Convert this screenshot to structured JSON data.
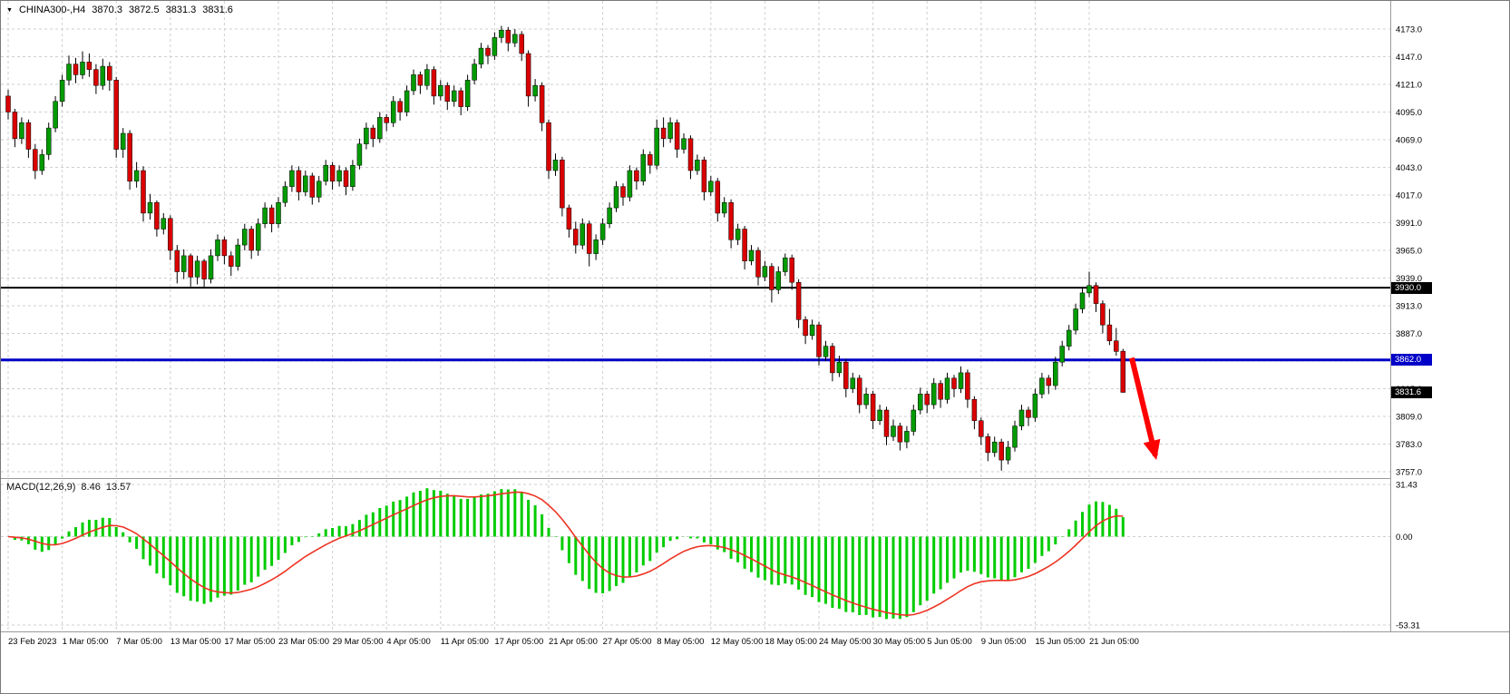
{
  "window": {
    "background": "#ffffff"
  },
  "chart_data": {
    "type": "candlestick",
    "symbol_timeframe": "CHINA300-,H4",
    "ohlc_display": {
      "open": "3870.3",
      "high": "3872.5",
      "low": "3831.3",
      "close": "3831.6"
    },
    "colors": {
      "up": "#009b00",
      "down": "#da0000",
      "candle_border": "#000000",
      "grid": "#cfcfcf",
      "resistance_line": "#000000",
      "support_line": "#0000c8",
      "arrow": "#ff0000",
      "macd_histogram": "#00cc00",
      "macd_signal": "#ee3322"
    },
    "price_axis": {
      "max": 4173.0,
      "min": 3757.0,
      "tick_step": 26.0,
      "tick_labels": [
        "4173.0",
        "4147.0",
        "4121.0",
        "4095.0",
        "4069.0",
        "4043.0",
        "4017.0",
        "3991.0",
        "3965.0",
        "3939.0",
        "3913.0",
        "3887.0",
        "3861.0",
        "3835.0",
        "3809.0",
        "3783.0",
        "3757.0"
      ]
    },
    "levels": [
      {
        "label": "3930.0",
        "value": 3930.0,
        "color": "#000000",
        "line_width": 2
      },
      {
        "label": "3862.0",
        "value": 3862.0,
        "color": "#0000c8",
        "line_width": 3
      }
    ],
    "current_price": {
      "label": "3831.6",
      "value": 3831.6,
      "badge_color": "#000000"
    },
    "time_axis": {
      "label_every_n_bars": 8,
      "labels": [
        "23 Feb 2023",
        "1 Mar 05:00",
        "7 Mar 05:00",
        "13 Mar 05:00",
        "17 Mar 05:00",
        "23 Mar 05:00",
        "29 Mar 05:00",
        "4 Apr 05:00",
        "11 Apr 05:00",
        "17 Apr 05:00",
        "21 Apr 05:00",
        "27 Apr 05:00",
        "8 May 05:00",
        "12 May 05:00",
        "18 May 05:00",
        "24 May 05:00",
        "30 May 05:00",
        "5 Jun 05:00",
        "9 Jun 05:00",
        "15 Jun 05:00",
        "21 Jun 05:00"
      ]
    },
    "candles": [
      [
        4110,
        4116,
        4088,
        4095
      ],
      [
        4095,
        4098,
        4062,
        4070
      ],
      [
        4070,
        4090,
        4065,
        4085
      ],
      [
        4085,
        4088,
        4052,
        4060
      ],
      [
        4060,
        4065,
        4032,
        4040
      ],
      [
        4040,
        4060,
        4036,
        4055
      ],
      [
        4055,
        4085,
        4050,
        4080
      ],
      [
        4080,
        4110,
        4076,
        4105
      ],
      [
        4105,
        4130,
        4100,
        4125
      ],
      [
        4125,
        4148,
        4120,
        4140
      ],
      [
        4140,
        4146,
        4122,
        4130
      ],
      [
        4130,
        4152,
        4126,
        4142
      ],
      [
        4142,
        4150,
        4128,
        4135
      ],
      [
        4135,
        4140,
        4112,
        4120
      ],
      [
        4120,
        4145,
        4116,
        4138
      ],
      [
        4138,
        4142,
        4115,
        4125
      ],
      [
        4125,
        4128,
        4052,
        4060
      ],
      [
        4060,
        4080,
        4052,
        4075
      ],
      [
        4075,
        4078,
        4022,
        4030
      ],
      [
        4030,
        4048,
        4024,
        4040
      ],
      [
        4040,
        4044,
        3992,
        4000
      ],
      [
        4000,
        4018,
        3994,
        4010
      ],
      [
        4010,
        4012,
        3978,
        3985
      ],
      [
        3985,
        4000,
        3980,
        3995
      ],
      [
        3995,
        3998,
        3956,
        3965
      ],
      [
        3965,
        3970,
        3934,
        3945
      ],
      [
        3945,
        3966,
        3938,
        3960
      ],
      [
        3960,
        3962,
        3931,
        3940
      ],
      [
        3940,
        3960,
        3933,
        3955
      ],
      [
        3955,
        3957,
        3930,
        3938
      ],
      [
        3938,
        3966,
        3934,
        3960
      ],
      [
        3960,
        3980,
        3955,
        3975
      ],
      [
        3975,
        3978,
        3952,
        3960
      ],
      [
        3960,
        3964,
        3941,
        3950
      ],
      [
        3950,
        3976,
        3946,
        3970
      ],
      [
        3970,
        3990,
        3965,
        3985
      ],
      [
        3985,
        3988,
        3957,
        3965
      ],
      [
        3965,
        3995,
        3960,
        3990
      ],
      [
        3990,
        4010,
        3986,
        4005
      ],
      [
        4005,
        4008,
        3982,
        3990
      ],
      [
        3990,
        4015,
        3986,
        4010
      ],
      [
        4010,
        4030,
        4006,
        4025
      ],
      [
        4025,
        4045,
        4020,
        4040
      ],
      [
        4040,
        4044,
        4012,
        4020
      ],
      [
        4020,
        4040,
        4016,
        4035
      ],
      [
        4035,
        4038,
        4008,
        4015
      ],
      [
        4015,
        4035,
        4010,
        4030
      ],
      [
        4030,
        4050,
        4026,
        4045
      ],
      [
        4045,
        4048,
        4022,
        4030
      ],
      [
        4030,
        4045,
        4025,
        4040
      ],
      [
        4040,
        4043,
        4017,
        4025
      ],
      [
        4025,
        4050,
        4021,
        4045
      ],
      [
        4045,
        4070,
        4041,
        4065
      ],
      [
        4065,
        4085,
        4060,
        4080
      ],
      [
        4080,
        4083,
        4062,
        4070
      ],
      [
        4070,
        4095,
        4066,
        4090
      ],
      [
        4090,
        4093,
        4077,
        4085
      ],
      [
        4085,
        4110,
        4081,
        4105
      ],
      [
        4105,
        4108,
        4087,
        4095
      ],
      [
        4095,
        4120,
        4091,
        4115
      ],
      [
        4115,
        4135,
        4111,
        4130
      ],
      [
        4130,
        4133,
        4112,
        4120
      ],
      [
        4120,
        4140,
        4116,
        4135
      ],
      [
        4135,
        4138,
        4102,
        4110
      ],
      [
        4110,
        4125,
        4106,
        4120
      ],
      [
        4120,
        4123,
        4097,
        4105
      ],
      [
        4105,
        4120,
        4100,
        4115
      ],
      [
        4115,
        4118,
        4092,
        4100
      ],
      [
        4100,
        4130,
        4096,
        4125
      ],
      [
        4125,
        4145,
        4121,
        4140
      ],
      [
        4140,
        4160,
        4136,
        4155
      ],
      [
        4155,
        4158,
        4140,
        4148
      ],
      [
        4148,
        4170,
        4144,
        4165
      ],
      [
        4165,
        4176,
        4160,
        4172
      ],
      [
        4172,
        4175,
        4152,
        4160
      ],
      [
        4160,
        4173,
        4156,
        4168
      ],
      [
        4168,
        4171,
        4143,
        4150
      ],
      [
        4150,
        4153,
        4100,
        4110
      ],
      [
        4110,
        4126,
        4105,
        4120
      ],
      [
        4120,
        4123,
        4077,
        4085
      ],
      [
        4085,
        4088,
        4032,
        4040
      ],
      [
        4040,
        4056,
        4035,
        4050
      ],
      [
        4050,
        4053,
        3997,
        4005
      ],
      [
        4005,
        4008,
        3977,
        3985
      ],
      [
        3985,
        3992,
        3962,
        3970
      ],
      [
        3970,
        3995,
        3966,
        3990
      ],
      [
        3990,
        3993,
        3950,
        3962
      ],
      [
        3962,
        3980,
        3956,
        3975
      ],
      [
        3975,
        3995,
        3970,
        3990
      ],
      [
        3990,
        4010,
        3986,
        4005
      ],
      [
        4005,
        4030,
        4001,
        4025
      ],
      [
        4025,
        4028,
        4007,
        4015
      ],
      [
        4015,
        4045,
        4011,
        4040
      ],
      [
        4040,
        4043,
        4022,
        4030
      ],
      [
        4030,
        4060,
        4026,
        4055
      ],
      [
        4055,
        4058,
        4037,
        4045
      ],
      [
        4045,
        4088,
        4041,
        4080
      ],
      [
        4080,
        4090,
        4062,
        4070
      ],
      [
        4070,
        4090,
        4066,
        4085
      ],
      [
        4085,
        4088,
        4052,
        4060
      ],
      [
        4060,
        4075,
        4056,
        4070
      ],
      [
        4070,
        4073,
        4032,
        4040
      ],
      [
        4040,
        4055,
        4036,
        4050
      ],
      [
        4050,
        4053,
        4012,
        4020
      ],
      [
        4020,
        4035,
        4016,
        4030
      ],
      [
        4030,
        4033,
        3992,
        4000
      ],
      [
        4000,
        4015,
        3996,
        4010
      ],
      [
        4010,
        4013,
        3967,
        3975
      ],
      [
        3975,
        3990,
        3970,
        3985
      ],
      [
        3985,
        3988,
        3947,
        3955
      ],
      [
        3955,
        3970,
        3951,
        3965
      ],
      [
        3965,
        3968,
        3932,
        3940
      ],
      [
        3940,
        3955,
        3936,
        3950
      ],
      [
        3950,
        3953,
        3916,
        3928
      ],
      [
        3928,
        3950,
        3924,
        3945
      ],
      [
        3945,
        3962,
        3941,
        3958
      ],
      [
        3958,
        3961,
        3928,
        3935
      ],
      [
        3935,
        3938,
        3892,
        3900
      ],
      [
        3900,
        3903,
        3877,
        3885
      ],
      [
        3885,
        3900,
        3881,
        3895
      ],
      [
        3895,
        3898,
        3857,
        3865
      ],
      [
        3865,
        3880,
        3861,
        3875
      ],
      [
        3875,
        3878,
        3842,
        3850
      ],
      [
        3850,
        3866,
        3846,
        3860
      ],
      [
        3860,
        3863,
        3827,
        3835
      ],
      [
        3835,
        3850,
        3831,
        3845
      ],
      [
        3845,
        3848,
        3812,
        3820
      ],
      [
        3820,
        3836,
        3816,
        3830
      ],
      [
        3830,
        3833,
        3797,
        3805
      ],
      [
        3805,
        3820,
        3801,
        3815
      ],
      [
        3815,
        3818,
        3782,
        3790
      ],
      [
        3790,
        3806,
        3786,
        3800
      ],
      [
        3800,
        3803,
        3777,
        3785
      ],
      [
        3785,
        3800,
        3779,
        3795
      ],
      [
        3795,
        3820,
        3791,
        3815
      ],
      [
        3815,
        3836,
        3811,
        3830
      ],
      [
        3830,
        3833,
        3812,
        3820
      ],
      [
        3820,
        3845,
        3816,
        3840
      ],
      [
        3840,
        3843,
        3817,
        3825
      ],
      [
        3825,
        3850,
        3821,
        3845
      ],
      [
        3845,
        3848,
        3827,
        3835
      ],
      [
        3835,
        3856,
        3831,
        3850
      ],
      [
        3850,
        3853,
        3817,
        3825
      ],
      [
        3825,
        3828,
        3797,
        3805
      ],
      [
        3805,
        3808,
        3782,
        3790
      ],
      [
        3790,
        3793,
        3767,
        3775
      ],
      [
        3775,
        3790,
        3771,
        3785
      ],
      [
        3785,
        3788,
        3758,
        3768
      ],
      [
        3768,
        3786,
        3764,
        3780
      ],
      [
        3780,
        3805,
        3776,
        3800
      ],
      [
        3800,
        3820,
        3796,
        3815
      ],
      [
        3815,
        3818,
        3800,
        3808
      ],
      [
        3808,
        3835,
        3804,
        3830
      ],
      [
        3830,
        3850,
        3826,
        3845
      ],
      [
        3845,
        3848,
        3830,
        3838
      ],
      [
        3838,
        3865,
        3834,
        3860
      ],
      [
        3860,
        3880,
        3856,
        3875
      ],
      [
        3875,
        3895,
        3871,
        3890
      ],
      [
        3890,
        3915,
        3886,
        3910
      ],
      [
        3910,
        3930,
        3906,
        3925
      ],
      [
        3925,
        3945,
        3921,
        3932
      ],
      [
        3932,
        3935,
        3907,
        3915
      ],
      [
        3915,
        3918,
        3887,
        3895
      ],
      [
        3895,
        3910,
        3876,
        3880
      ],
      [
        3880,
        3892,
        3866,
        3870
      ],
      [
        3870.3,
        3872.5,
        3831.3,
        3831.6
      ]
    ],
    "annotations": [
      {
        "type": "arrow",
        "color": "#ff0000",
        "from": {
          "bar": 166.3,
          "price": 3864
        },
        "to": {
          "bar": 169.8,
          "price": 3772
        }
      }
    ],
    "macd": {
      "title": "MACD(12,26,9)",
      "value_main": "8.46",
      "value_signal": "13.57",
      "params": [
        12,
        26,
        9
      ],
      "axis": {
        "max": 31.43,
        "zero": 0.0,
        "min": -53.31
      },
      "axis_labels": [
        "31.43",
        "0.00",
        "-53.31"
      ],
      "computed_from_closes": true
    }
  }
}
